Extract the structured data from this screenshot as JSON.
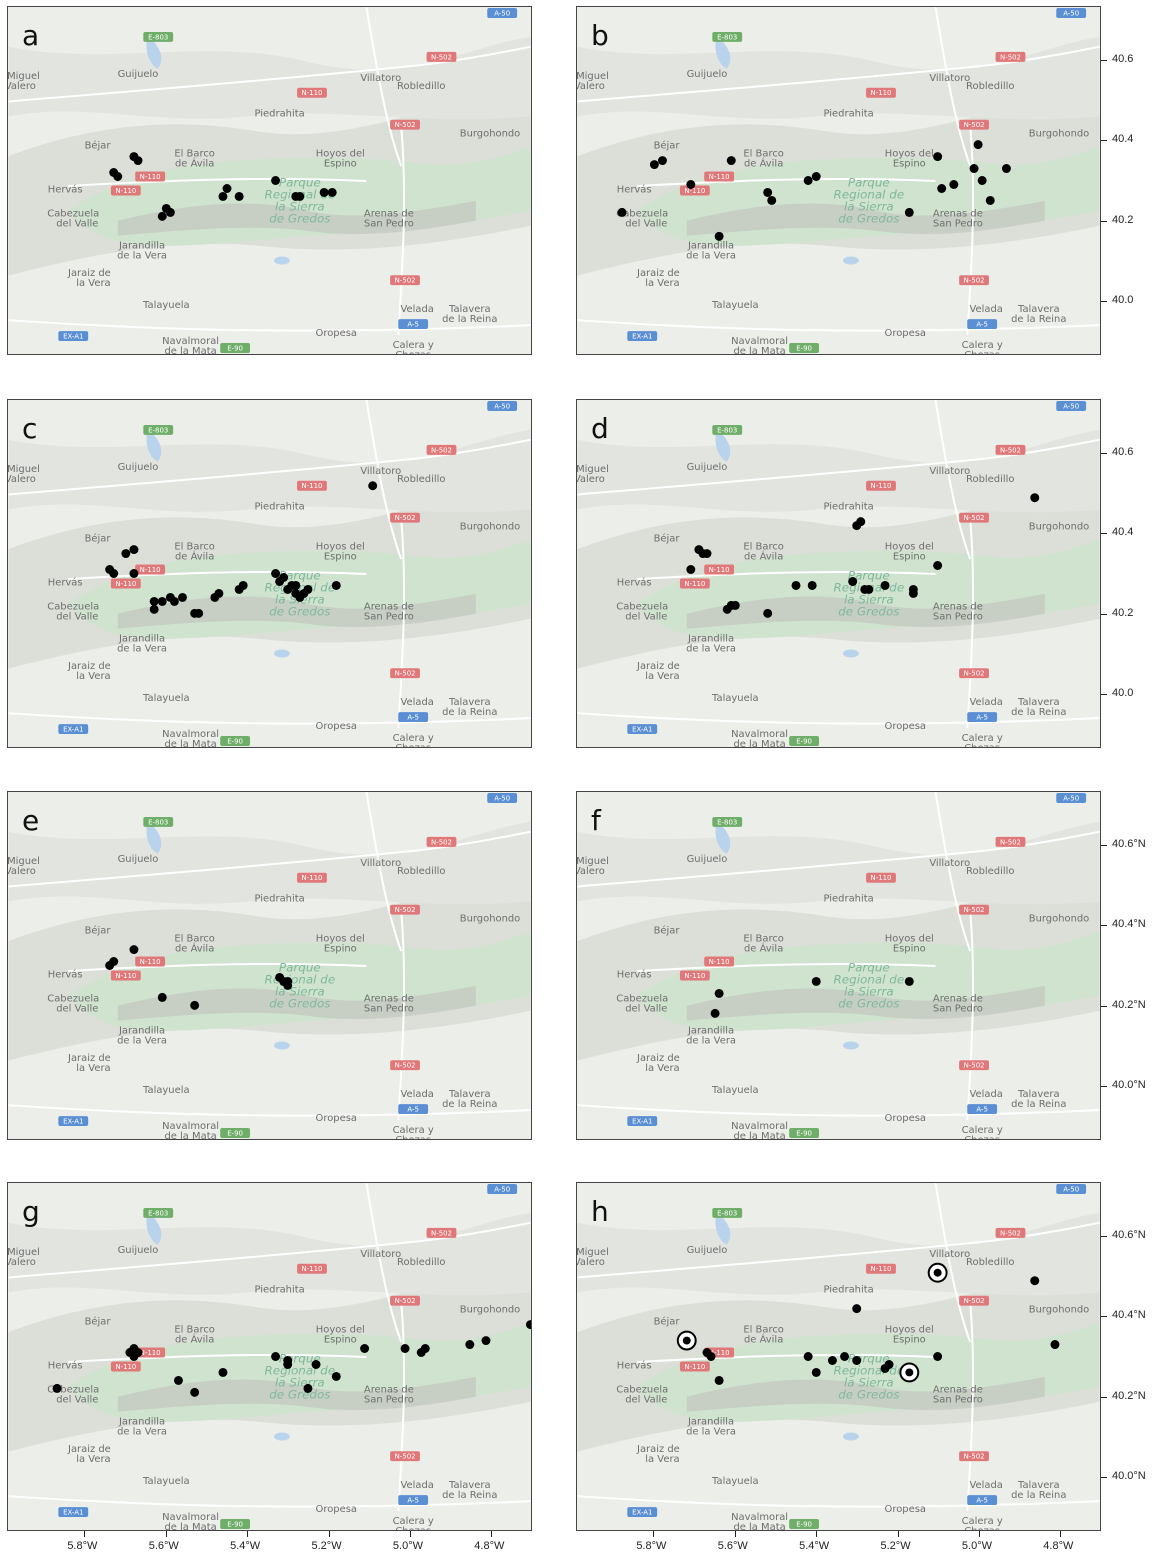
{
  "map": {
    "places": [
      {
        "name": "Guijuelo",
        "lon": -5.67,
        "lat": 40.56
      },
      {
        "name": "Villatoro",
        "lon": -5.07,
        "lat": 40.55
      },
      {
        "name": "Robledillo",
        "lon": -4.97,
        "lat": 40.53
      },
      {
        "name": "Piedrahita",
        "lon": -5.32,
        "lat": 40.46
      },
      {
        "name": "Burgohondo",
        "lon": -4.8,
        "lat": 40.41
      },
      {
        "name": "Béjar",
        "lon": -5.77,
        "lat": 40.38
      },
      {
        "name": "El Barco",
        "lon": -5.53,
        "lat": 40.36
      },
      {
        "name": "de Ávila",
        "lon": -5.53,
        "lat": 40.335
      },
      {
        "name": "Hoyos del",
        "lon": -5.17,
        "lat": 40.36
      },
      {
        "name": "Espino",
        "lon": -5.17,
        "lat": 40.335
      },
      {
        "name": "Hervás",
        "lon": -5.85,
        "lat": 40.27
      },
      {
        "name": "Cabezuela",
        "lon": -5.83,
        "lat": 40.21
      },
      {
        "name": "del Valle",
        "lon": -5.82,
        "lat": 40.185
      },
      {
        "name": "Arenas de",
        "lon": -5.05,
        "lat": 40.21
      },
      {
        "name": "San Pedro",
        "lon": -5.05,
        "lat": 40.185
      },
      {
        "name": "Jarandilla",
        "lon": -5.66,
        "lat": 40.13
      },
      {
        "name": "de la Vera",
        "lon": -5.66,
        "lat": 40.105
      },
      {
        "name": "Jaraiz de",
        "lon": -5.79,
        "lat": 40.06
      },
      {
        "name": "la Vera",
        "lon": -5.78,
        "lat": 40.035
      },
      {
        "name": "Talayuela",
        "lon": -5.6,
        "lat": 39.98
      },
      {
        "name": "Velada",
        "lon": -4.98,
        "lat": 39.97
      },
      {
        "name": "Talavera",
        "lon": -4.85,
        "lat": 39.97
      },
      {
        "name": "de la Reina",
        "lon": -4.85,
        "lat": 39.945
      },
      {
        "name": "Navalmoral",
        "lon": -5.54,
        "lat": 39.89
      },
      {
        "name": "de la Mata",
        "lon": -5.54,
        "lat": 39.865
      },
      {
        "name": "Oropesa",
        "lon": -5.18,
        "lat": 39.91
      },
      {
        "name": "Calera y",
        "lon": -4.99,
        "lat": 39.88
      },
      {
        "name": "Chozas",
        "lon": -4.99,
        "lat": 39.855
      },
      {
        "name": "San Miguel",
        "lon": -5.98,
        "lat": 40.555
      },
      {
        "name": "de Valero",
        "lon": -5.98,
        "lat": 40.53
      }
    ],
    "park_label": [
      "Parque",
      "Regional de",
      "la Sierra",
      "de Gredos"
    ],
    "roads": [
      {
        "label": "E-803",
        "lon": -5.62,
        "lat": 40.66,
        "color": "#6fae68"
      },
      {
        "label": "A-50",
        "lon": -4.77,
        "lat": 40.72,
        "color": "#5b8fd4"
      },
      {
        "label": "N-502",
        "lon": -4.92,
        "lat": 40.61,
        "color": "#e0787a"
      },
      {
        "label": "N-110",
        "lon": -5.24,
        "lat": 40.52,
        "color": "#e0787a"
      },
      {
        "label": "N-502",
        "lon": -5.01,
        "lat": 40.44,
        "color": "#e0787a"
      },
      {
        "label": "N-110",
        "lon": -5.64,
        "lat": 40.31,
        "color": "#e0787a"
      },
      {
        "label": "N-110",
        "lon": -5.7,
        "lat": 40.275,
        "color": "#e0787a"
      },
      {
        "label": "N-502",
        "lon": -5.01,
        "lat": 40.05,
        "color": "#e0787a"
      },
      {
        "label": "A-5",
        "lon": -4.99,
        "lat": 39.94,
        "color": "#5b8fd4"
      },
      {
        "label": "EX-A1",
        "lon": -5.83,
        "lat": 39.91,
        "color": "#5b8fd4"
      },
      {
        "label": "E-90",
        "lon": -5.43,
        "lat": 39.88,
        "color": "#6fae68"
      }
    ]
  },
  "axes": {
    "x_ticks": [
      "5.8°W",
      "5.6°W",
      "5.4°W",
      "5.2°W",
      "5.0°W",
      "4.8°W"
    ],
    "x_values": [
      -5.8,
      -5.6,
      -5.4,
      -5.2,
      -5.0,
      -4.8
    ],
    "y_ticks_plain": [
      "40.6",
      "40.4",
      "40.2",
      "40.0"
    ],
    "y_ticks_n": [
      "40.6°N",
      "40.4°N",
      "40.2°N",
      "40.0°N"
    ],
    "y_values": [
      40.6,
      40.4,
      40.2,
      40.0
    ]
  },
  "panels": [
    {
      "label": "a",
      "points": [
        [
          -5.73,
          40.32
        ],
        [
          -5.72,
          40.31
        ],
        [
          -5.68,
          40.36
        ],
        [
          -5.67,
          40.35
        ],
        [
          -5.61,
          40.21
        ],
        [
          -5.6,
          40.23
        ],
        [
          -5.59,
          40.22
        ],
        [
          -5.46,
          40.26
        ],
        [
          -5.45,
          40.28
        ],
        [
          -5.42,
          40.26
        ],
        [
          -5.33,
          40.3
        ],
        [
          -5.28,
          40.26
        ],
        [
          -5.27,
          40.26
        ],
        [
          -5.21,
          40.27
        ],
        [
          -5.19,
          40.27
        ]
      ]
    },
    {
      "label": "b",
      "points": [
        [
          -5.88,
          40.22
        ],
        [
          -5.8,
          40.34
        ],
        [
          -5.78,
          40.35
        ],
        [
          -5.71,
          40.29
        ],
        [
          -5.64,
          40.16
        ],
        [
          -5.61,
          40.35
        ],
        [
          -5.52,
          40.27
        ],
        [
          -5.51,
          40.25
        ],
        [
          -5.42,
          40.3
        ],
        [
          -5.4,
          40.31
        ],
        [
          -5.17,
          40.22
        ],
        [
          -5.1,
          40.36
        ],
        [
          -5.09,
          40.28
        ],
        [
          -5.06,
          40.29
        ],
        [
          -5.01,
          40.33
        ],
        [
          -5.0,
          40.39
        ],
        [
          -4.99,
          40.3
        ],
        [
          -4.97,
          40.25
        ],
        [
          -4.93,
          40.33
        ]
      ]
    },
    {
      "label": "c",
      "points": [
        [
          -5.09,
          40.52
        ],
        [
          -5.68,
          40.36
        ],
        [
          -5.7,
          40.35
        ],
        [
          -5.74,
          40.31
        ],
        [
          -5.73,
          40.3
        ],
        [
          -5.68,
          40.3
        ],
        [
          -5.63,
          40.23
        ],
        [
          -5.63,
          40.21
        ],
        [
          -5.61,
          40.23
        ],
        [
          -5.59,
          40.24
        ],
        [
          -5.58,
          40.23
        ],
        [
          -5.56,
          40.24
        ],
        [
          -5.53,
          40.2
        ],
        [
          -5.52,
          40.2
        ],
        [
          -5.48,
          40.24
        ],
        [
          -5.47,
          40.25
        ],
        [
          -5.42,
          40.26
        ],
        [
          -5.41,
          40.27
        ],
        [
          -5.33,
          40.3
        ],
        [
          -5.32,
          40.28
        ],
        [
          -5.31,
          40.29
        ],
        [
          -5.3,
          40.26
        ],
        [
          -5.29,
          40.27
        ],
        [
          -5.28,
          40.25
        ],
        [
          -5.28,
          40.27
        ],
        [
          -5.27,
          40.24
        ],
        [
          -5.26,
          40.25
        ],
        [
          -5.25,
          40.26
        ],
        [
          -5.18,
          40.27
        ]
      ]
    },
    {
      "label": "d",
      "points": [
        [
          -4.86,
          40.49
        ],
        [
          -5.3,
          40.42
        ],
        [
          -5.29,
          40.43
        ],
        [
          -5.69,
          40.36
        ],
        [
          -5.68,
          40.35
        ],
        [
          -5.67,
          40.35
        ],
        [
          -5.71,
          40.31
        ],
        [
          -5.62,
          40.21
        ],
        [
          -5.61,
          40.22
        ],
        [
          -5.6,
          40.22
        ],
        [
          -5.52,
          40.2
        ],
        [
          -5.45,
          40.27
        ],
        [
          -5.41,
          40.27
        ],
        [
          -5.31,
          40.28
        ],
        [
          -5.28,
          40.26
        ],
        [
          -5.27,
          40.26
        ],
        [
          -5.23,
          40.27
        ],
        [
          -5.16,
          40.26
        ],
        [
          -5.16,
          40.25
        ],
        [
          -5.1,
          40.32
        ]
      ]
    },
    {
      "label": "e",
      "points": [
        [
          -5.68,
          40.34
        ],
        [
          -5.74,
          40.3
        ],
        [
          -5.73,
          40.31
        ],
        [
          -5.61,
          40.22
        ],
        [
          -5.53,
          40.2
        ],
        [
          -5.32,
          40.27
        ],
        [
          -5.31,
          40.26
        ],
        [
          -5.3,
          40.25
        ],
        [
          -5.3,
          40.26
        ]
      ]
    },
    {
      "label": "f",
      "points": [
        [
          -5.64,
          40.23
        ],
        [
          -5.65,
          40.18
        ],
        [
          -5.4,
          40.26
        ],
        [
          -5.17,
          40.26
        ]
      ]
    },
    {
      "label": "g",
      "points": [
        [
          -4.7,
          40.38
        ],
        [
          -4.81,
          40.34
        ],
        [
          -4.85,
          40.33
        ],
        [
          -4.96,
          40.32
        ],
        [
          -4.97,
          40.31
        ],
        [
          -5.01,
          40.32
        ],
        [
          -5.11,
          40.32
        ],
        [
          -5.23,
          40.28
        ],
        [
          -5.25,
          40.22
        ],
        [
          -5.18,
          40.25
        ],
        [
          -5.3,
          40.28
        ],
        [
          -5.3,
          40.29
        ],
        [
          -5.33,
          40.3
        ],
        [
          -5.46,
          40.26
        ],
        [
          -5.53,
          40.21
        ],
        [
          -5.57,
          40.24
        ],
        [
          -5.67,
          40.31
        ],
        [
          -5.68,
          40.3
        ],
        [
          -5.68,
          40.32
        ],
        [
          -5.69,
          40.31
        ],
        [
          -5.87,
          40.22
        ]
      ]
    },
    {
      "label": "h",
      "points": [
        [
          -4.86,
          40.49
        ],
        [
          -4.81,
          40.33
        ],
        [
          -5.3,
          40.42
        ],
        [
          -5.67,
          40.31
        ],
        [
          -5.66,
          40.3
        ],
        [
          -5.64,
          40.24
        ],
        [
          -5.42,
          40.3
        ],
        [
          -5.4,
          40.26
        ],
        [
          -5.36,
          40.29
        ],
        [
          -5.33,
          40.3
        ],
        [
          -5.3,
          40.29
        ],
        [
          -5.23,
          40.27
        ],
        [
          -5.22,
          40.28
        ],
        [
          -5.1,
          40.3
        ]
      ],
      "circled": [
        [
          -5.1,
          40.51
        ],
        [
          -5.72,
          40.34
        ],
        [
          -5.17,
          40.26
        ]
      ]
    }
  ]
}
